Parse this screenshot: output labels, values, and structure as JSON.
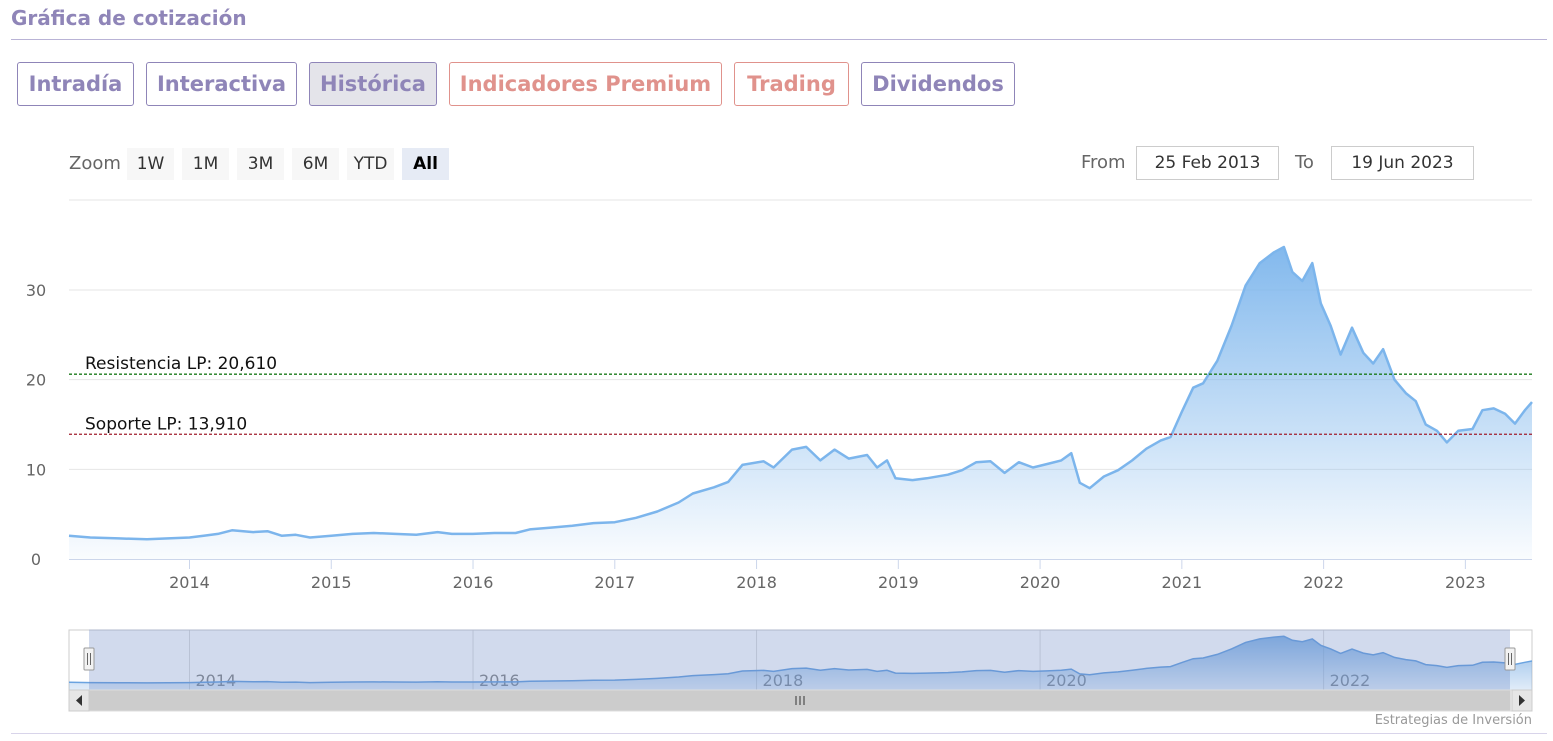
{
  "header": {
    "title": "Gráfica de cotización"
  },
  "tabs": [
    {
      "label": "Intradía",
      "style": "normal",
      "active": false
    },
    {
      "label": "Interactiva",
      "style": "normal",
      "active": false
    },
    {
      "label": "Histórica",
      "style": "normal",
      "active": true
    },
    {
      "label": "Indicadores Premium",
      "style": "premium",
      "active": false
    },
    {
      "label": "Trading",
      "style": "premium",
      "active": false
    },
    {
      "label": "Dividendos",
      "style": "normal",
      "active": false
    }
  ],
  "range_selector": {
    "zoom_label": "Zoom",
    "buttons": [
      "1W",
      "1M",
      "3M",
      "6M",
      "YTD",
      "All"
    ],
    "active_button": "All",
    "from_label": "From",
    "from_value": "25 Feb 2013",
    "to_label": "To",
    "to_value": "19 Jun 2023"
  },
  "credit": "Estrategias de Inversión",
  "colors": {
    "accent": "#8f85b8",
    "premium": "#e0928c",
    "series_line": "#7cb5ec",
    "resistance": "#1a7a1a",
    "support": "#a01c2c"
  },
  "chart_data": {
    "type": "area",
    "title": "",
    "xlabel": "",
    "ylabel": "",
    "ylim": [
      0,
      40
    ],
    "yticks": [
      0,
      10,
      20,
      30
    ],
    "xlim": [
      2013.15,
      2023.47
    ],
    "xticks": [
      2014,
      2015,
      2016,
      2017,
      2018,
      2019,
      2020,
      2021,
      2022,
      2023
    ],
    "grid": true,
    "legend": "none",
    "series": [
      {
        "points": [
          [
            2013.15,
            2.6
          ],
          [
            2013.3,
            2.4
          ],
          [
            2013.5,
            2.3
          ],
          [
            2013.7,
            2.2
          ],
          [
            2013.85,
            2.3
          ],
          [
            2014.0,
            2.4
          ],
          [
            2014.1,
            2.6
          ],
          [
            2014.2,
            2.8
          ],
          [
            2014.3,
            3.2
          ],
          [
            2014.45,
            3.0
          ],
          [
            2014.55,
            3.1
          ],
          [
            2014.65,
            2.6
          ],
          [
            2014.75,
            2.7
          ],
          [
            2014.85,
            2.4
          ],
          [
            2015.0,
            2.6
          ],
          [
            2015.15,
            2.8
          ],
          [
            2015.3,
            2.9
          ],
          [
            2015.45,
            2.8
          ],
          [
            2015.6,
            2.7
          ],
          [
            2015.75,
            3.0
          ],
          [
            2015.85,
            2.8
          ],
          [
            2016.0,
            2.8
          ],
          [
            2016.15,
            2.9
          ],
          [
            2016.3,
            2.9
          ],
          [
            2016.4,
            3.3
          ],
          [
            2016.55,
            3.5
          ],
          [
            2016.7,
            3.7
          ],
          [
            2016.85,
            4.0
          ],
          [
            2017.0,
            4.1
          ],
          [
            2017.15,
            4.6
          ],
          [
            2017.3,
            5.3
          ],
          [
            2017.45,
            6.3
          ],
          [
            2017.55,
            7.3
          ],
          [
            2017.7,
            8.0
          ],
          [
            2017.8,
            8.6
          ],
          [
            2017.9,
            10.5
          ],
          [
            2018.05,
            10.9
          ],
          [
            2018.12,
            10.2
          ],
          [
            2018.25,
            12.2
          ],
          [
            2018.35,
            12.5
          ],
          [
            2018.45,
            11.0
          ],
          [
            2018.55,
            12.2
          ],
          [
            2018.65,
            11.2
          ],
          [
            2018.78,
            11.6
          ],
          [
            2018.85,
            10.2
          ],
          [
            2018.92,
            11.0
          ],
          [
            2018.98,
            9.0
          ],
          [
            2019.1,
            8.8
          ],
          [
            2019.2,
            9.0
          ],
          [
            2019.35,
            9.4
          ],
          [
            2019.45,
            9.9
          ],
          [
            2019.55,
            10.8
          ],
          [
            2019.65,
            10.9
          ],
          [
            2019.75,
            9.6
          ],
          [
            2019.85,
            10.8
          ],
          [
            2019.95,
            10.2
          ],
          [
            2020.05,
            10.6
          ],
          [
            2020.15,
            11.0
          ],
          [
            2020.22,
            11.8
          ],
          [
            2020.28,
            8.5
          ],
          [
            2020.35,
            7.9
          ],
          [
            2020.45,
            9.2
          ],
          [
            2020.55,
            9.9
          ],
          [
            2020.65,
            11.0
          ],
          [
            2020.75,
            12.3
          ],
          [
            2020.85,
            13.2
          ],
          [
            2020.92,
            13.6
          ],
          [
            2021.0,
            16.4
          ],
          [
            2021.08,
            19.1
          ],
          [
            2021.15,
            19.6
          ],
          [
            2021.25,
            22.1
          ],
          [
            2021.35,
            26.0
          ],
          [
            2021.45,
            30.5
          ],
          [
            2021.55,
            33.0
          ],
          [
            2021.65,
            34.2
          ],
          [
            2021.72,
            34.8
          ],
          [
            2021.78,
            32.0
          ],
          [
            2021.85,
            31.0
          ],
          [
            2021.92,
            33.0
          ],
          [
            2021.98,
            28.5
          ],
          [
            2022.05,
            26.0
          ],
          [
            2022.12,
            22.8
          ],
          [
            2022.2,
            25.8
          ],
          [
            2022.28,
            23.0
          ],
          [
            2022.35,
            21.8
          ],
          [
            2022.42,
            23.4
          ],
          [
            2022.5,
            20.0
          ],
          [
            2022.58,
            18.5
          ],
          [
            2022.65,
            17.6
          ],
          [
            2022.72,
            15.0
          ],
          [
            2022.8,
            14.3
          ],
          [
            2022.87,
            13.0
          ],
          [
            2022.95,
            14.3
          ],
          [
            2023.05,
            14.5
          ],
          [
            2023.12,
            16.6
          ],
          [
            2023.2,
            16.8
          ],
          [
            2023.28,
            16.2
          ],
          [
            2023.35,
            15.1
          ],
          [
            2023.42,
            16.6
          ],
          [
            2023.47,
            17.5
          ]
        ]
      }
    ],
    "annotations": [
      {
        "label": "Resistencia LP: 20,610",
        "value": 20.61,
        "style": "dashed",
        "color": "#1a7a1a"
      },
      {
        "label": "Soporte LP: 13,910",
        "value": 13.91,
        "style": "dashed",
        "color": "#a01c2c"
      }
    ],
    "navigator": {
      "xticks": [
        2014,
        2016,
        2018,
        2020,
        2022
      ]
    }
  }
}
